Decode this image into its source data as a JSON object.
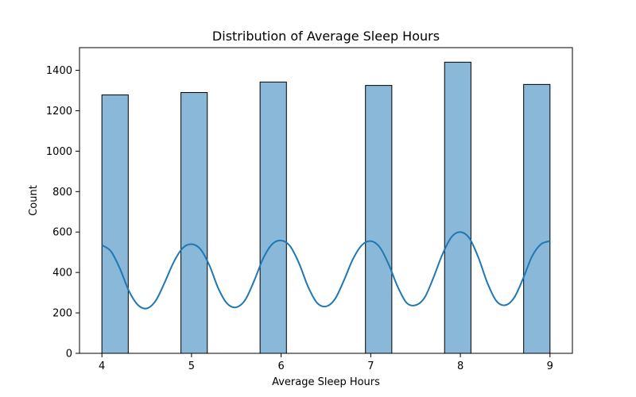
{
  "chart_data": {
    "type": "bar",
    "title": "Distribution of Average Sleep Hours",
    "xlabel": "Average Sleep Hours",
    "ylabel": "Count",
    "bar_color": "#8ab8d8",
    "bar_edge_color": "#000000",
    "kde_color": "#1f77b4",
    "xlim": [
      3.75,
      9.25
    ],
    "ylim": [
      0,
      1512
    ],
    "x_ticks": [
      4,
      5,
      6,
      7,
      8,
      9
    ],
    "y_ticks": [
      0,
      200,
      400,
      600,
      800,
      1000,
      1200,
      1400
    ],
    "bin_width": 0.2941,
    "bars": [
      {
        "x": 4.147,
        "value": 1278
      },
      {
        "x": 5.029,
        "value": 1290
      },
      {
        "x": 5.912,
        "value": 1342
      },
      {
        "x": 7.088,
        "value": 1325
      },
      {
        "x": 7.971,
        "value": 1440
      },
      {
        "x": 8.853,
        "value": 1330
      }
    ],
    "kde": {
      "name": "",
      "x": [
        4.0,
        4.1,
        4.2,
        4.3,
        4.4,
        4.5,
        4.6,
        4.7,
        4.8,
        4.9,
        5.0,
        5.1,
        5.2,
        5.3,
        5.4,
        5.5,
        5.6,
        5.7,
        5.8,
        5.9,
        6.0,
        6.1,
        6.2,
        6.3,
        6.4,
        6.5,
        6.6,
        6.7,
        6.8,
        6.9,
        7.0,
        7.1,
        7.2,
        7.3,
        7.4,
        7.5,
        7.6,
        7.7,
        7.8,
        7.9,
        8.0,
        8.1,
        8.2,
        8.3,
        8.4,
        8.5,
        8.6,
        8.7,
        8.8,
        8.9,
        9.0
      ],
      "y": [
        535,
        505,
        420,
        310,
        240,
        222,
        260,
        350,
        450,
        520,
        540,
        515,
        435,
        320,
        245,
        228,
        265,
        360,
        470,
        540,
        558,
        530,
        445,
        330,
        250,
        232,
        268,
        360,
        465,
        535,
        555,
        525,
        440,
        330,
        250,
        238,
        275,
        375,
        490,
        575,
        600,
        570,
        475,
        350,
        260,
        238,
        275,
        370,
        480,
        540,
        555
      ]
    }
  }
}
